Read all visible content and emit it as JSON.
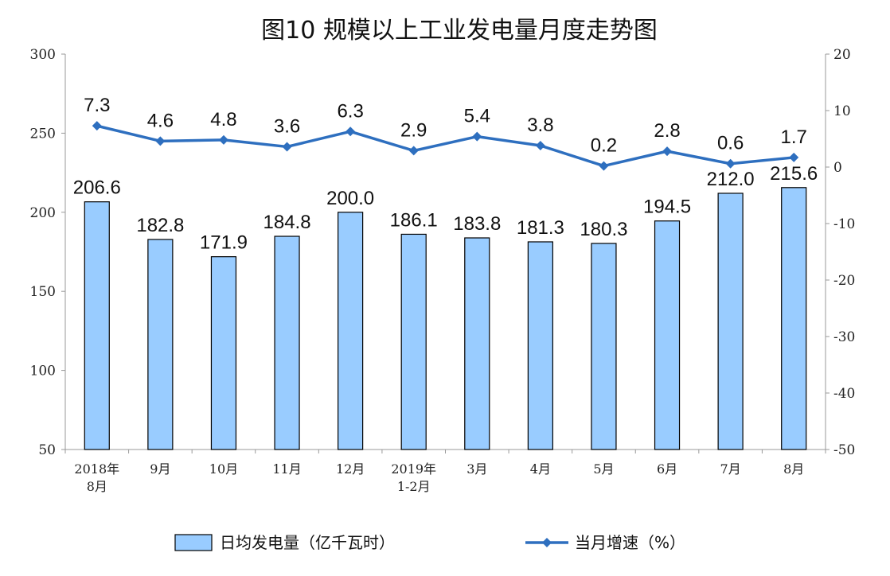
{
  "chart_data": {
    "type": "bar",
    "title": "图10  规模以上工业发电量月度走势图",
    "categories": [
      [
        "2018年",
        "8月"
      ],
      [
        "9月"
      ],
      [
        "10月"
      ],
      [
        "11月"
      ],
      [
        "12月"
      ],
      [
        "2019年",
        "1-2月"
      ],
      [
        "3月"
      ],
      [
        "4月"
      ],
      [
        "5月"
      ],
      [
        "6月"
      ],
      [
        "7月"
      ],
      [
        "8月"
      ]
    ],
    "series": [
      {
        "name": "日均发电量（亿千瓦时）",
        "type": "bar",
        "axis": "left",
        "color": "#99CCFF",
        "values": [
          206.6,
          182.8,
          171.9,
          184.8,
          200.0,
          186.1,
          183.8,
          181.3,
          180.3,
          194.5,
          212.0,
          215.6
        ],
        "labels": [
          "206.6",
          "182.8",
          "171.9",
          "184.8",
          "200.0",
          "186.1",
          "183.8",
          "181.3",
          "180.3",
          "194.5",
          "212.0",
          "215.6"
        ]
      },
      {
        "name": "当月增速（%）",
        "type": "line",
        "axis": "right",
        "color": "#2E6FBF",
        "values": [
          7.3,
          4.6,
          4.8,
          3.6,
          6.3,
          2.9,
          5.4,
          3.8,
          0.2,
          2.8,
          0.6,
          1.7
        ],
        "labels": [
          "7.3",
          "4.6",
          "4.8",
          "3.6",
          "6.3",
          "2.9",
          "5.4",
          "3.8",
          "0.2",
          "2.8",
          "0.6",
          "1.7"
        ]
      }
    ],
    "y_left": {
      "min": 50,
      "max": 300,
      "ticks": [
        "50",
        "100",
        "150",
        "200",
        "250",
        "300"
      ]
    },
    "y_right": {
      "min": -50,
      "max": 20,
      "ticks": [
        "-50",
        "-40",
        "-30",
        "-20",
        "-10",
        "0",
        "10",
        "20"
      ]
    },
    "grid": false,
    "legend_position": "bottom"
  }
}
